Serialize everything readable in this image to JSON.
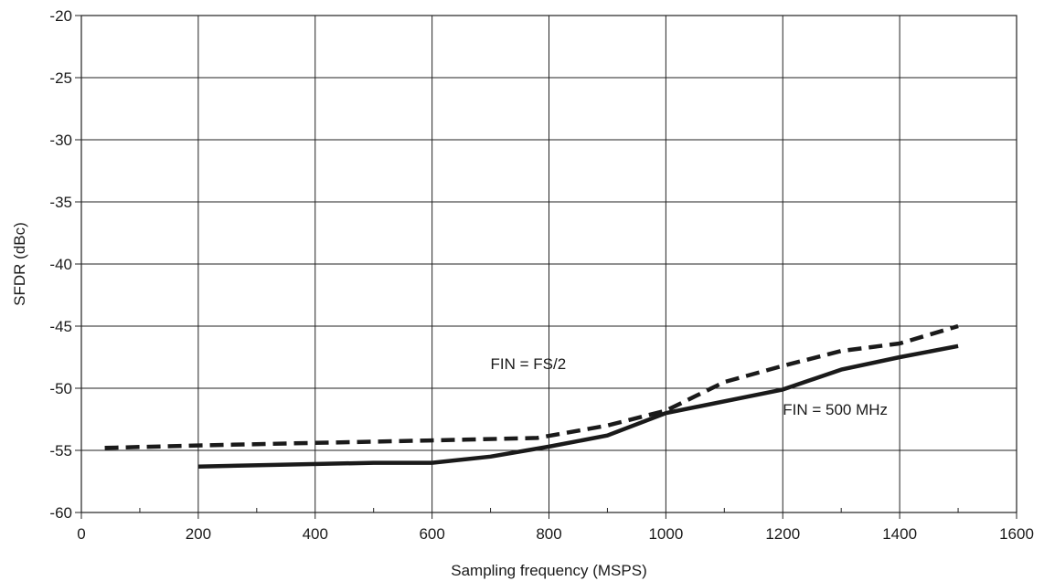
{
  "chart_data": {
    "type": "line",
    "title": "",
    "xlabel": "Sampling frequency (MSPS)",
    "ylabel": "SFDR (dBc)",
    "xlim": [
      0,
      1600
    ],
    "ylim": [
      -60,
      -20
    ],
    "x_ticks": [
      0,
      200,
      400,
      600,
      800,
      1000,
      1200,
      1400,
      1600
    ],
    "x_minor_ticks": [
      100,
      300,
      500,
      700,
      900,
      1100,
      1300,
      1500
    ],
    "y_ticks": [
      -60,
      -55,
      -50,
      -45,
      -40,
      -35,
      -30,
      -25,
      -20
    ],
    "x_tick_labels": [
      "0",
      "200",
      "400",
      "600",
      "800",
      "1000",
      "1200",
      "1400",
      "1600"
    ],
    "y_tick_labels": [
      "-60",
      "-55",
      "-50",
      "-45",
      "-40",
      "-35",
      "-30",
      "-25",
      "-20"
    ],
    "grid": true,
    "series": [
      {
        "name": "FIN = FS/2",
        "style": "dashed",
        "color": "#1a1a1a",
        "x": [
          40,
          200,
          400,
          600,
          780,
          900,
          1000,
          1100,
          1200,
          1300,
          1400,
          1500
        ],
        "y": [
          -54.8,
          -54.6,
          -54.4,
          -54.2,
          -54.0,
          -53.0,
          -51.8,
          -49.5,
          -48.2,
          -47.0,
          -46.4,
          -45.0
        ]
      },
      {
        "name": "FIN = 500 MHz",
        "style": "solid",
        "color": "#1a1a1a",
        "x": [
          200,
          500,
          600,
          700,
          800,
          900,
          1000,
          1200,
          1300,
          1400,
          1500
        ],
        "y": [
          -56.3,
          -56.0,
          -56.0,
          -55.5,
          -54.7,
          -53.8,
          -52.0,
          -50.1,
          -48.5,
          -47.5,
          -46.6
        ]
      }
    ],
    "annotations": [
      {
        "text": "FIN = FS/2",
        "x": 800,
        "y": -48.0
      },
      {
        "text": "FIN = 500 MHz",
        "x": 1200,
        "y": -51.7
      }
    ]
  }
}
